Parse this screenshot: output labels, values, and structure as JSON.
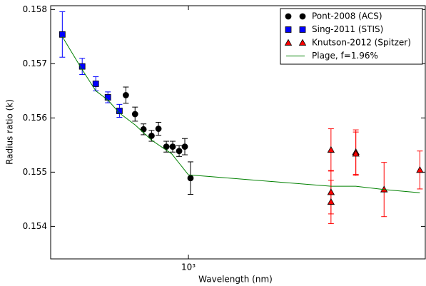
{
  "chart_data": {
    "type": "scatter",
    "x_label": "Wavelength (nm)",
    "y_label": "Radius ratio (k)",
    "xscale": "log",
    "xlim": [
      290,
      8400
    ],
    "xticks": [
      {
        "value": 1000,
        "label": "10³"
      }
    ],
    "ylim": [
      0.1534,
      0.15807
    ],
    "yticks": [
      0.154,
      0.155,
      0.156,
      0.157,
      0.158
    ],
    "grid": false,
    "legend": "upper right",
    "series": [
      {
        "name": "Pont-2008 (ACS)",
        "color": "#000000",
        "marker": "circle",
        "x": [
          570,
          619,
          668,
          718,
          764,
          820,
          868,
          920,
          968,
          1019
        ],
        "values": [
          0.15642,
          0.15607,
          0.15579,
          0.15567,
          0.1558,
          0.15547,
          0.15547,
          0.15539,
          0.15547,
          0.15489
        ],
        "errors": [
          0.00015,
          0.00013,
          0.0001,
          0.0001,
          0.00012,
          0.0001,
          0.0001,
          0.0001,
          0.00015,
          0.0003
        ]
      },
      {
        "name": "Sing-2011 (STIS)",
        "color": "#0000ff",
        "marker": "square",
        "x": [
          322,
          385,
          435,
          485,
          538
        ],
        "values": [
          0.15754,
          0.15695,
          0.15663,
          0.15638,
          0.15613
        ],
        "errors": [
          0.00042,
          0.00015,
          0.00013,
          0.0001,
          0.00012
        ]
      },
      {
        "name": "Knutson-2012 (Spitzer)",
        "color": "#ff0000",
        "marker": "triangle",
        "x": [
          3600,
          3600,
          3600,
          4500,
          4500,
          5800,
          8000
        ],
        "values": [
          0.15541,
          0.15463,
          0.15445,
          0.15537,
          0.15534,
          0.15468,
          0.15504
        ],
        "errors": [
          0.00039,
          0.0004,
          0.0004,
          0.00041,
          0.0004,
          0.0005,
          0.00035
        ]
      },
      {
        "name": "Plage, f=1.96%",
        "color": "#008000",
        "marker": "line",
        "x": [
          322,
          385,
          435,
          485,
          538,
          620,
          718,
          860,
          1000,
          3600,
          4500,
          5800,
          8000
        ],
        "values": [
          0.1575,
          0.15689,
          0.1565,
          0.15633,
          0.15609,
          0.15587,
          0.15559,
          0.15534,
          0.15495,
          0.15474,
          0.15474,
          0.15468,
          0.15462
        ]
      }
    ]
  }
}
